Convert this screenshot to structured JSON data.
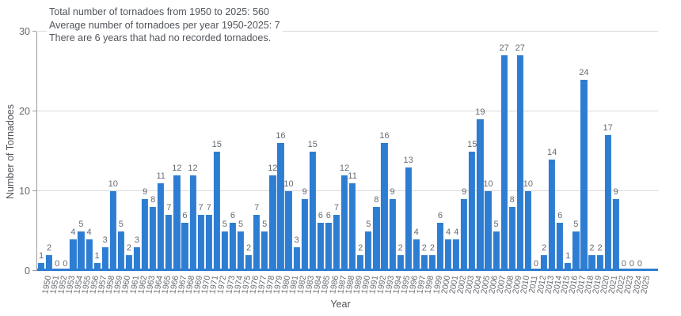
{
  "annotation": {
    "lines": [
      "Total number of tornadoes from 1950 to 2025: 560",
      "Average number of tornadoes per year 1950-2025: 7",
      "There are 6 years that had no recorded tornadoes."
    ]
  },
  "chart_data": {
    "type": "bar",
    "title": "Total number of tornadoes from 1950 to 2025: 560",
    "xlabel": "Year",
    "ylabel": "Number of Tornadoes",
    "ylim": [
      0,
      30
    ],
    "yticks": [
      0,
      10,
      20,
      30
    ],
    "grid": true,
    "legend": "none",
    "categories": [
      1950,
      1951,
      1952,
      1953,
      1954,
      1955,
      1956,
      1957,
      1958,
      1959,
      1960,
      1961,
      1962,
      1963,
      1964,
      1965,
      1966,
      1967,
      1968,
      1969,
      1970,
      1971,
      1972,
      1973,
      1974,
      1975,
      1976,
      1977,
      1978,
      1979,
      1980,
      1981,
      1982,
      1983,
      1984,
      1985,
      1986,
      1987,
      1988,
      1989,
      1990,
      1991,
      1992,
      1993,
      1994,
      1995,
      1996,
      1997,
      1998,
      1999,
      2000,
      2001,
      2002,
      2003,
      2004,
      2005,
      2006,
      2007,
      2008,
      2009,
      2010,
      2011,
      2012,
      2013,
      2014,
      2015,
      2016,
      2017,
      2018,
      2019,
      2020,
      2021,
      2022,
      2023,
      2024,
      2025
    ],
    "values": [
      1,
      2,
      0,
      0,
      4,
      5,
      4,
      1,
      3,
      10,
      5,
      2,
      3,
      9,
      8,
      11,
      7,
      12,
      6,
      12,
      7,
      7,
      15,
      5,
      6,
      5,
      2,
      7,
      5,
      12,
      16,
      10,
      3,
      9,
      15,
      6,
      6,
      7,
      12,
      11,
      2,
      5,
      8,
      16,
      9,
      2,
      13,
      4,
      2,
      2,
      6,
      4,
      4,
      9,
      15,
      19,
      10,
      5,
      27,
      8,
      27,
      10,
      0,
      2,
      14,
      6,
      1,
      5,
      24,
      2,
      2,
      17,
      9,
      0,
      0,
      0
    ],
    "total": 560,
    "average_per_year": 7,
    "zero_years_count": 6
  },
  "colors": {
    "bar": "#2d7dd2",
    "grid": "#d9d9d9",
    "axis_line": "#9b9b9b",
    "tick_text": "#666a6f",
    "title_text": "#50545a",
    "value_label_text": "#676b70",
    "background": "#ffffff"
  }
}
